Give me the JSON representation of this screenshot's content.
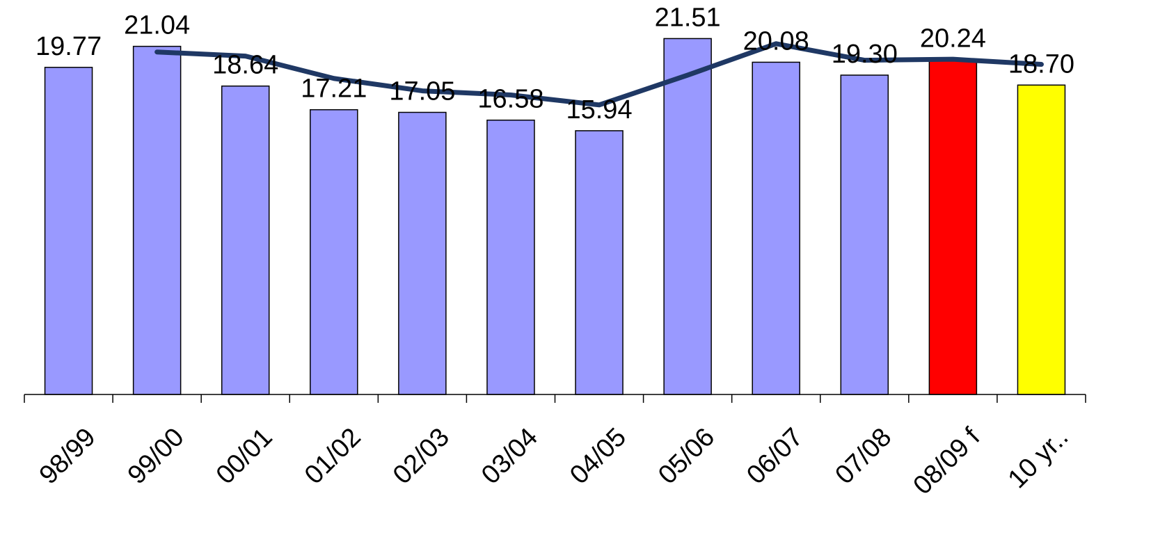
{
  "chart_data": {
    "type": "bar",
    "categories": [
      "98/99",
      "99/00",
      "00/01",
      "01/02",
      "02/03",
      "03/04",
      "04/05",
      "05/06",
      "06/07",
      "07/08",
      "08/09 f",
      "10 yr.."
    ],
    "values": [
      19.77,
      21.04,
      18.64,
      17.21,
      17.05,
      16.58,
      15.94,
      21.51,
      20.08,
      19.3,
      20.24,
      18.7
    ],
    "data_labels": [
      "19.77",
      "21.04",
      "18.64",
      "17.21",
      "17.05",
      "16.58",
      "15.94",
      "21.51",
      "20.08",
      "19.30",
      "20.24",
      "18.70"
    ],
    "bar_colors": [
      "#9999ff",
      "#9999ff",
      "#9999ff",
      "#9999ff",
      "#9999ff",
      "#9999ff",
      "#9999ff",
      "#9999ff",
      "#9999ff",
      "#9999ff",
      "#ff0000",
      "#ffff00"
    ],
    "line_series": {
      "type": "line",
      "color": "#1f3864",
      "start_index": 1,
      "values": [
        20.7,
        20.45,
        19.1,
        18.35,
        18.1,
        17.5,
        19.3,
        21.2,
        20.2,
        20.26,
        19.95
      ]
    },
    "ylim": [
      0,
      23
    ],
    "legend": "none",
    "grid": false,
    "title": "",
    "xlabel": "",
    "ylabel": ""
  }
}
